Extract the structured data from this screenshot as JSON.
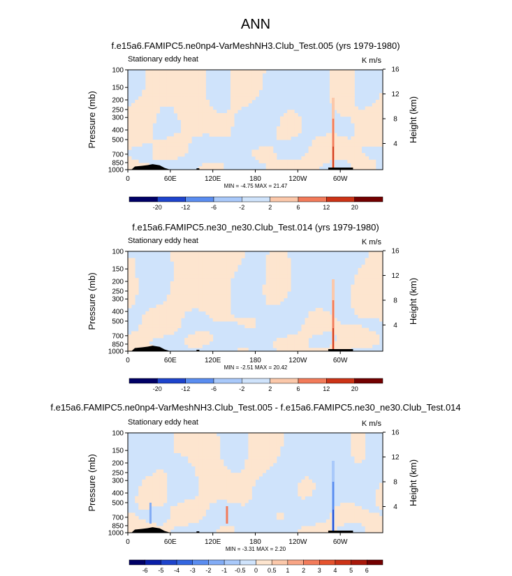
{
  "page_title": "ANN",
  "palette": {
    "neg": [
      "#000066",
      "#0a1fa8",
      "#1e44cc",
      "#3366e0",
      "#5a8df0",
      "#82acf5",
      "#a9c9fa",
      "#cfe3fb"
    ],
    "pos": [
      "#fde5cf",
      "#fbc8aa",
      "#f8a585",
      "#f27b5a",
      "#e5532e",
      "#cc3316",
      "#a8180a",
      "#730000"
    ],
    "land": "#000000"
  },
  "chart_data": [
    {
      "type": "heatmap",
      "title": "f.e15a6.FAMIPC5.ne0np4-VarMeshNH3.Club_Test.005 (yrs 1979-1980)",
      "subtitle_left": "Stationary eddy heat",
      "subtitle_right": "K m/s",
      "ylabel": "Pressure (mb)",
      "ylabel_right": "Height (km)",
      "x_ticks": [
        "0",
        "60E",
        "120E",
        "180",
        "120W",
        "60W"
      ],
      "x_tick_values": [
        0,
        60,
        120,
        180,
        240,
        300
      ],
      "xlim": [
        0,
        360
      ],
      "y_ticks": [
        "100",
        "150",
        "200",
        "250",
        "300",
        "400",
        "500",
        "700",
        "850",
        "1000"
      ],
      "y_tick_values": [
        100,
        150,
        200,
        250,
        300,
        400,
        500,
        700,
        850,
        1000
      ],
      "ylim": [
        1000,
        100
      ],
      "height_ticks": [
        "4",
        "8",
        "12",
        "16"
      ],
      "height_tick_values": [
        4,
        8,
        12,
        16
      ],
      "stats": "MIN = -4.75 MAX = 21.47",
      "min": -4.75,
      "max": 21.47,
      "colorbar_labels": [
        "-20",
        "-12",
        "-6",
        "-2",
        "2",
        "6",
        "12",
        "20"
      ],
      "plume_lon": 290,
      "plume_peak": 21.47,
      "plume_sign": 1
    },
    {
      "type": "heatmap",
      "title": "f.e15a6.FAMIPC5.ne30_ne30.Club_Test.014 (yrs 1979-1980)",
      "subtitle_left": "Stationary eddy heat",
      "subtitle_right": "K m/s",
      "ylabel": "Pressure (mb)",
      "ylabel_right": "Height (km)",
      "x_ticks": [
        "0",
        "60E",
        "120E",
        "180",
        "120W",
        "60W"
      ],
      "x_tick_values": [
        0,
        60,
        120,
        180,
        240,
        300
      ],
      "xlim": [
        0,
        360
      ],
      "y_ticks": [
        "100",
        "150",
        "200",
        "250",
        "300",
        "400",
        "500",
        "700",
        "850",
        "1000"
      ],
      "y_tick_values": [
        100,
        150,
        200,
        250,
        300,
        400,
        500,
        700,
        850,
        1000
      ],
      "ylim": [
        1000,
        100
      ],
      "height_ticks": [
        "4",
        "8",
        "12",
        "16"
      ],
      "height_tick_values": [
        4,
        8,
        12,
        16
      ],
      "stats": "MIN = -2.51 MAX = 20.42",
      "min": -2.51,
      "max": 20.42,
      "colorbar_labels": [
        "-20",
        "-12",
        "-6",
        "-2",
        "2",
        "6",
        "12",
        "20"
      ],
      "plume_lon": 290,
      "plume_peak": 20.42,
      "plume_sign": 1
    },
    {
      "type": "heatmap",
      "title": "f.e15a6.FAMIPC5.ne0np4-VarMeshNH3.Club_Test.005 - f.e15a6.FAMIPC5.ne30_ne30.Club_Test.014",
      "subtitle_left": "Stationary eddy heat",
      "subtitle_right": "K m/s",
      "ylabel": "Pressure (mb)",
      "ylabel_right": "Height (km)",
      "x_ticks": [
        "0",
        "60E",
        "120E",
        "180",
        "120W",
        "60W"
      ],
      "x_tick_values": [
        0,
        60,
        120,
        180,
        240,
        300
      ],
      "xlim": [
        0,
        360
      ],
      "y_ticks": [
        "100",
        "150",
        "200",
        "250",
        "300",
        "400",
        "500",
        "700",
        "850",
        "1000"
      ],
      "y_tick_values": [
        100,
        150,
        200,
        250,
        300,
        400,
        500,
        700,
        850,
        1000
      ],
      "ylim": [
        1000,
        100
      ],
      "height_ticks": [
        "4",
        "8",
        "12",
        "16"
      ],
      "height_tick_values": [
        4,
        8,
        12,
        16
      ],
      "stats": "MIN = -3.31 MAX = 2.20",
      "min": -3.31,
      "max": 2.2,
      "colorbar_labels": [
        "-6",
        "-5",
        "-4",
        "-3",
        "-2",
        "-1",
        "-0.5",
        "0",
        "0.5",
        "1",
        "2",
        "3",
        "4",
        "5",
        "6"
      ],
      "plume_lon": 290,
      "plume_peak": -3.31,
      "plume_sign": -1
    }
  ]
}
